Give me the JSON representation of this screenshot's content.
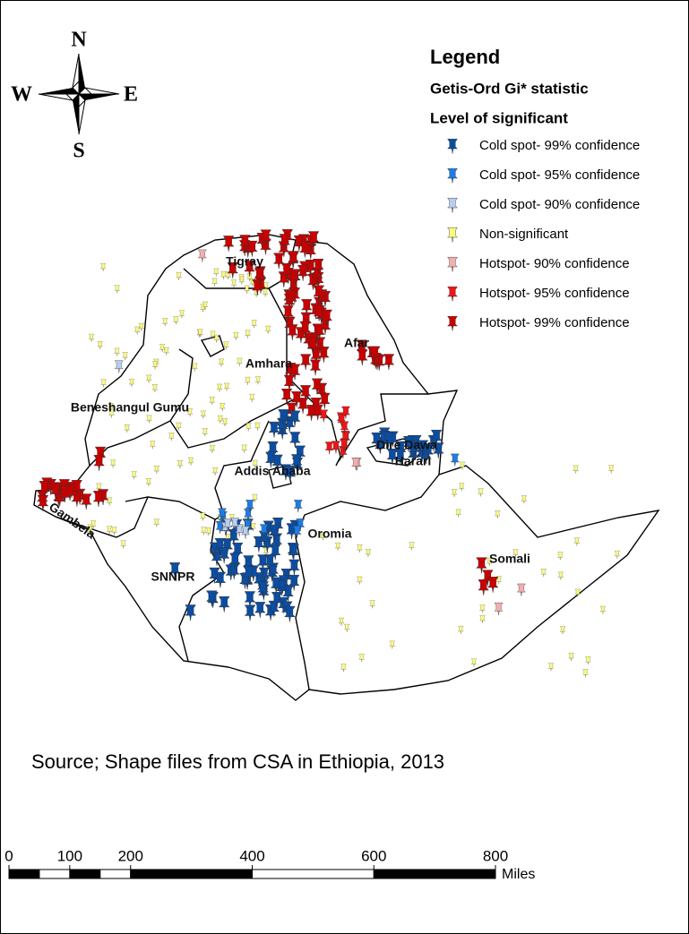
{
  "compass": {
    "north": "N",
    "south": "S",
    "east": "E",
    "west": "W"
  },
  "legend": {
    "title": "Legend",
    "subtitle": "Getis-Ord Gi* statistic",
    "heading": "Level of significant",
    "items": [
      {
        "label": "Cold spot- 99% confidence",
        "color": "#0b4da2"
      },
      {
        "label": "Cold spot- 95% confidence",
        "color": "#1f7be6"
      },
      {
        "label": "Cold spot- 90% confidence",
        "color": "#b9cdee"
      },
      {
        "label": "Non-significant",
        "color": "#fbfb7e"
      },
      {
        "label": "Hotspot- 90% confidence",
        "color": "#f3aeae"
      },
      {
        "label": "Hotspot- 95% confidence",
        "color": "#ee1515"
      },
      {
        "label": "Hotspot- 99% confidence",
        "color": "#c80000"
      }
    ]
  },
  "regions": [
    "Tigray",
    "Afar",
    "Amhara",
    "Beneshangul Gumu",
    "Dire Dawa",
    "Harari",
    "Addis Ababa",
    "Oromia",
    "Gambela",
    "Somali",
    "SNNPR"
  ],
  "source": "Source; Shape files from CSA in Ethiopia, 2013",
  "scale_bar": {
    "ticks": [
      0,
      100,
      200,
      400,
      600,
      800
    ],
    "unit": "Miles"
  }
}
